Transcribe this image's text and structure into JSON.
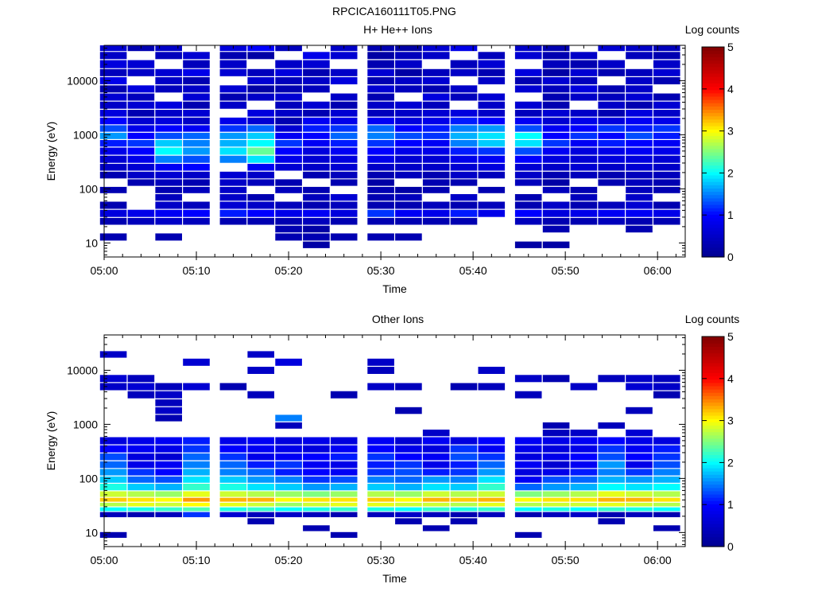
{
  "figure": {
    "title": "RPCICA160111T05.PNG"
  },
  "colorbar": {
    "label": "Log counts",
    "ticks": [
      "0",
      "1",
      "2",
      "3",
      "4",
      "5"
    ],
    "range": [
      0,
      5
    ],
    "colormap": "jet",
    "colors": [
      "#00008f",
      "#0000ff",
      "#00ffff",
      "#ffff00",
      "#ff0000",
      "#800000"
    ]
  },
  "chart_data": [
    {
      "type": "heatmap",
      "title": "H+ He++ Ions",
      "xlabel": "Time",
      "ylabel": "Energy (eV)",
      "yscale": "log",
      "ylim": [
        5.5,
        45000
      ],
      "xlim": [
        "05:00",
        "06:03"
      ],
      "xticks": [
        "05:00",
        "05:10",
        "05:20",
        "05:30",
        "05:40",
        "05:50",
        "06:00"
      ],
      "yticks": [
        "10",
        "100",
        "1000",
        "10000"
      ],
      "time_bins": [
        "05:01",
        "05:04",
        "05:07",
        "05:10",
        "05:14",
        "05:17",
        "05:20",
        "05:23",
        "05:26",
        "05:30",
        "05:33",
        "05:36",
        "05:39",
        "05:42",
        "05:46",
        "05:49",
        "05:52",
        "05:55",
        "05:58",
        "06:01"
      ],
      "energy_bins": [
        40000,
        30000,
        20000,
        14000,
        10000,
        7000,
        5000,
        3500,
        2500,
        1800,
        1300,
        950,
        700,
        500,
        350,
        250,
        180,
        130,
        95,
        70,
        50,
        35,
        25,
        18,
        13,
        9
      ],
      "values": [
        [
          0.6,
          0.3,
          0.5,
          0,
          0.7,
          1.0,
          0.4,
          0,
          0.5,
          0.3,
          0.2,
          0.6,
          0.8,
          0,
          0.5,
          0.3,
          0,
          0.6,
          0.5,
          0.4
        ],
        [
          0.5,
          0,
          0.4,
          0.6,
          0.3,
          0.2,
          0,
          0.8,
          0.6,
          0.2,
          0.4,
          0.5,
          0,
          0.4,
          0.6,
          0.3,
          0.5,
          0,
          0.4,
          0.3
        ],
        [
          0.7,
          0.6,
          0,
          0.4,
          0.5,
          0,
          0.5,
          0.6,
          0,
          0.3,
          0.5,
          0,
          0.4,
          0.6,
          0,
          0.4,
          0.3,
          0.5,
          0,
          0.5
        ],
        [
          0.4,
          0.5,
          0.6,
          0.8,
          0.6,
          0.4,
          0.7,
          0.3,
          0.5,
          0.6,
          0.2,
          0.4,
          0.5,
          0.3,
          0.7,
          0.2,
          0.6,
          0.3,
          0.4,
          0.6
        ],
        [
          0.8,
          0,
          0.5,
          0.3,
          0,
          0.6,
          0.4,
          0.5,
          0.7,
          0.3,
          0.5,
          0.6,
          0,
          0.5,
          0.3,
          0.6,
          0.4,
          0,
          0.5,
          0.3
        ],
        [
          0.3,
          0.7,
          0.4,
          0.5,
          0.6,
          0.2,
          0.3,
          0.4,
          0,
          0.6,
          0.4,
          0.3,
          0.5,
          0,
          0.6,
          0.4,
          0.7,
          0.3,
          0.5,
          0
        ],
        [
          0.6,
          0.4,
          0,
          0.6,
          0.3,
          0.5,
          0.6,
          0,
          0.5,
          0.3,
          0,
          0.7,
          0.4,
          0.6,
          0,
          0.3,
          0.5,
          0.4,
          0.6,
          0.3
        ],
        [
          0.5,
          0.6,
          0.7,
          0.3,
          0.5,
          0,
          0.4,
          0.6,
          0.3,
          0.5,
          0.6,
          0.4,
          0,
          0.5,
          0.6,
          0.3,
          0,
          0.5,
          0.3,
          0.6
        ],
        [
          0.7,
          0.3,
          0.5,
          0.6,
          0,
          0.7,
          0.5,
          0.3,
          0.6,
          0.4,
          0.5,
          0.6,
          0.7,
          0.5,
          0.4,
          0.6,
          0.5,
          0.3,
          0.7,
          0.5
        ],
        [
          1.0,
          0.6,
          0.7,
          0.5,
          0.8,
          0.6,
          0.3,
          0.9,
          0.8,
          0.9,
          0.7,
          0.8,
          1.1,
          1.0,
          0.9,
          0.6,
          0.8,
          0.7,
          0.9,
          0.8
        ],
        [
          1.3,
          0.8,
          1.0,
          0.9,
          1.2,
          1.4,
          0.6,
          1.1,
          1.2,
          1.4,
          1.0,
          1.1,
          1.5,
          1.6,
          1.3,
          0.9,
          1.0,
          1.2,
          1.1,
          1.2
        ],
        [
          1.6,
          1.0,
          1.3,
          1.4,
          1.6,
          1.8,
          0.9,
          1.0,
          1.4,
          1.5,
          1.3,
          1.2,
          1.7,
          1.9,
          2.0,
          1.0,
          1.2,
          1.0,
          1.3,
          1.1
        ],
        [
          1.1,
          1.2,
          1.8,
          1.5,
          1.7,
          2.0,
          1.2,
          0.9,
          1.1,
          1.2,
          1.0,
          0.9,
          1.5,
          1.8,
          1.9,
          1.2,
          0.9,
          1.1,
          1.0,
          0.9
        ],
        [
          0.8,
          1.0,
          2.0,
          1.6,
          1.9,
          2.4,
          1.0,
          0.7,
          0.9,
          1.0,
          0.8,
          0.8,
          1.1,
          1.2,
          1.3,
          0.9,
          0.7,
          0.8,
          0.9,
          0.8
        ],
        [
          0.6,
          0.8,
          1.5,
          1.3,
          1.5,
          1.9,
          0.8,
          0.6,
          0.7,
          0.8,
          0.6,
          0.6,
          0.8,
          0.9,
          1.0,
          0.7,
          0.6,
          0.7,
          0.7,
          0.6
        ],
        [
          0.5,
          0.6,
          0.9,
          1.0,
          0,
          0.9,
          0.6,
          0.5,
          0.6,
          0.5,
          0.5,
          0.5,
          0.6,
          0.7,
          0.6,
          0.5,
          0.6,
          0.5,
          0.6,
          0.5
        ],
        [
          0.3,
          0.5,
          0.6,
          0.5,
          0.6,
          0.5,
          0,
          0.3,
          0.4,
          0.3,
          0.4,
          0.3,
          0.5,
          0.4,
          0.5,
          0.3,
          0.4,
          0.3,
          0.4,
          0.4
        ],
        [
          0,
          0.3,
          0.4,
          0.3,
          0.5,
          0.4,
          0.3,
          0,
          0.3,
          0.2,
          0,
          0.3,
          0.3,
          0,
          0.4,
          0.2,
          0,
          0.3,
          0.4,
          0.3
        ],
        [
          0.3,
          0,
          0.3,
          0.4,
          0.5,
          0,
          0.4,
          0.3,
          0,
          0.3,
          0.2,
          0.3,
          0,
          0.3,
          0,
          0.4,
          0.3,
          0,
          0.4,
          0.3
        ],
        [
          0,
          0,
          0.4,
          0,
          0.5,
          0.3,
          0,
          0.4,
          0.6,
          0.3,
          0.4,
          0,
          0.5,
          0,
          0.3,
          0,
          0.4,
          0,
          0.5,
          0
        ],
        [
          0.3,
          0,
          0.5,
          0.4,
          0.6,
          0.5,
          0.4,
          0.3,
          0.4,
          0.3,
          0.3,
          0.4,
          0.3,
          0.4,
          0.3,
          0.5,
          0.3,
          0.4,
          0.6,
          0.3
        ],
        [
          0.7,
          0.8,
          0.9,
          1.0,
          1.1,
          1.0,
          0.8,
          0.9,
          0.7,
          1.2,
          0.9,
          0.8,
          1.1,
          0.8,
          1.0,
          0.7,
          0.8,
          0.9,
          0.9,
          0.8
        ],
        [
          0.3,
          0.4,
          0.5,
          0.4,
          0.3,
          0.3,
          0.3,
          0.4,
          0.3,
          0.3,
          0.3,
          0.3,
          0.3,
          0,
          0.4,
          0.3,
          0.3,
          0.4,
          0.3,
          0.3
        ],
        [
          0,
          0,
          0,
          0,
          0,
          0,
          0.3,
          0.2,
          0,
          0,
          0,
          0,
          0,
          0,
          0,
          0.3,
          0,
          0,
          0.3,
          0
        ],
        [
          0.3,
          0,
          0.3,
          0,
          0,
          0,
          0.3,
          0.3,
          0.3,
          0.3,
          0.3,
          0,
          0,
          0,
          0,
          0,
          0,
          0,
          0,
          0
        ],
        [
          0,
          0,
          0,
          0,
          0,
          0,
          0,
          0.2,
          0,
          0,
          0,
          0,
          0,
          0,
          0.2,
          0.2,
          0,
          0,
          0,
          0
        ]
      ]
    },
    {
      "type": "heatmap",
      "title": "Other Ions",
      "xlabel": "Time",
      "ylabel": "Energy (eV)",
      "yscale": "log",
      "ylim": [
        5.5,
        45000
      ],
      "xlim": [
        "05:00",
        "06:03"
      ],
      "xticks": [
        "05:00",
        "05:10",
        "05:20",
        "05:30",
        "05:40",
        "05:50",
        "06:00"
      ],
      "yticks": [
        "10",
        "100",
        "1000",
        "10000"
      ],
      "time_bins": [
        "05:01",
        "05:04",
        "05:07",
        "05:10",
        "05:14",
        "05:17",
        "05:20",
        "05:23",
        "05:26",
        "05:30",
        "05:33",
        "05:36",
        "05:39",
        "05:42",
        "05:46",
        "05:49",
        "05:52",
        "05:55",
        "05:58",
        "06:01"
      ],
      "energy_bins": [
        20000,
        14000,
        10000,
        7000,
        5000,
        3500,
        2500,
        1800,
        1300,
        950,
        700,
        500,
        350,
        250,
        180,
        130,
        95,
        70,
        50,
        40,
        33,
        27,
        22,
        16,
        12,
        9
      ],
      "values": [
        [
          0.5,
          0,
          0,
          0,
          0,
          0.5,
          0,
          0,
          0,
          0,
          0,
          0,
          0,
          0,
          0,
          0,
          0,
          0,
          0,
          0
        ],
        [
          0,
          0,
          0,
          0.6,
          0,
          0,
          0.7,
          0,
          0,
          0.5,
          0,
          0,
          0,
          0,
          0,
          0,
          0,
          0,
          0,
          0
        ],
        [
          0,
          0,
          0,
          0,
          0,
          0.5,
          0,
          0,
          0,
          0.4,
          0,
          0,
          0,
          0.5,
          0,
          0,
          0,
          0,
          0,
          0
        ],
        [
          0.6,
          0.4,
          0,
          0,
          0,
          0,
          0,
          0,
          0,
          0,
          0,
          0,
          0,
          0,
          0.5,
          0.3,
          0,
          0.4,
          0.5,
          0.4
        ],
        [
          0.5,
          0.6,
          0.4,
          0.6,
          0.3,
          0,
          0,
          0,
          0,
          0.5,
          0.4,
          0,
          0.3,
          0.4,
          0,
          0,
          0.5,
          0,
          0.6,
          0.5
        ],
        [
          0,
          0.4,
          0.5,
          0,
          0,
          0.4,
          0,
          0,
          0.3,
          0,
          0,
          0,
          0,
          0,
          0.4,
          0,
          0,
          0,
          0,
          0.3
        ],
        [
          0,
          0,
          0.4,
          0,
          0,
          0,
          0,
          0,
          0,
          0,
          0,
          0,
          0,
          0,
          0,
          0,
          0,
          0,
          0,
          0
        ],
        [
          0,
          0,
          0.5,
          0,
          0,
          0,
          0,
          0,
          0,
          0,
          0.3,
          0,
          0,
          0,
          0,
          0,
          0,
          0,
          0.4,
          0
        ],
        [
          0,
          0,
          0.3,
          0,
          0,
          0,
          1.5,
          0,
          0,
          0,
          0,
          0,
          0,
          0,
          0,
          0,
          0,
          0,
          0,
          0
        ],
        [
          0,
          0,
          0,
          0,
          0,
          0,
          0.4,
          0,
          0,
          0,
          0,
          0,
          0,
          0,
          0,
          0.3,
          0,
          0.4,
          0,
          0
        ],
        [
          0,
          0,
          0,
          0,
          0,
          0,
          0,
          0,
          0,
          0,
          0,
          0.5,
          0,
          0,
          0,
          0.4,
          0.5,
          0,
          0.6,
          0
        ],
        [
          0.7,
          0.8,
          0.9,
          1.1,
          0.8,
          0.9,
          0.7,
          0.8,
          0.7,
          0.9,
          0.6,
          0.9,
          0.7,
          1.0,
          0.9,
          0.8,
          0.9,
          1.0,
          0.8,
          0.7
        ],
        [
          1.0,
          0.9,
          0.8,
          1.2,
          1.0,
          0.9,
          0.8,
          0.7,
          0.9,
          1.0,
          0.8,
          0.7,
          1.2,
          0.9,
          0.8,
          0.7,
          0.8,
          1.2,
          0.9,
          1.1
        ],
        [
          1.3,
          0.7,
          0.6,
          1.4,
          1.2,
          0.8,
          0.9,
          1.0,
          1.1,
          1.2,
          1.0,
          0.9,
          1.3,
          1.2,
          0.7,
          0.8,
          1.0,
          1.3,
          1.0,
          1.2
        ],
        [
          1.4,
          0.8,
          0.9,
          1.5,
          1.4,
          1.1,
          1.2,
          0.9,
          0.8,
          1.1,
          1.2,
          0.8,
          1.1,
          1.4,
          0.9,
          0.6,
          0.9,
          1.6,
          0.8,
          1.3
        ],
        [
          1.6,
          1.2,
          1.0,
          1.7,
          1.5,
          1.4,
          1.1,
          1.0,
          0.9,
          1.2,
          1.3,
          1.1,
          1.2,
          1.6,
          0.7,
          0.8,
          1.1,
          1.5,
          1.2,
          1.5
        ],
        [
          1.8,
          1.4,
          1.3,
          1.9,
          1.8,
          1.6,
          1.5,
          1.2,
          1.3,
          1.5,
          1.4,
          1.6,
          1.5,
          1.9,
          0.9,
          1.3,
          1.4,
          1.7,
          1.6,
          1.7
        ],
        [
          2.1,
          1.8,
          1.7,
          2.2,
          2.1,
          1.9,
          1.8,
          1.6,
          1.7,
          1.8,
          1.7,
          1.9,
          1.8,
          2.2,
          1.4,
          1.6,
          1.7,
          2.0,
          1.9,
          2.0
        ],
        [
          2.8,
          2.7,
          2.6,
          2.9,
          2.8,
          2.7,
          2.6,
          2.5,
          2.6,
          2.7,
          2.6,
          2.8,
          2.7,
          2.8,
          2.5,
          2.6,
          2.7,
          2.9,
          2.8,
          2.7
        ],
        [
          3.2,
          3.1,
          3.0,
          3.4,
          3.3,
          3.3,
          3.0,
          3.1,
          3.1,
          3.2,
          3.0,
          3.3,
          3.2,
          3.3,
          3.0,
          3.1,
          3.1,
          3.3,
          3.3,
          3.1
        ],
        [
          2.7,
          2.9,
          2.8,
          3.0,
          2.9,
          2.8,
          2.6,
          2.8,
          2.9,
          2.9,
          2.8,
          2.8,
          2.7,
          2.9,
          2.7,
          2.8,
          2.8,
          2.9,
          2.8,
          2.7
        ],
        [
          2.0,
          2.1,
          2.2,
          2.3,
          2.1,
          2.2,
          2.0,
          2.1,
          2.2,
          2.1,
          2.0,
          2.2,
          2.1,
          2.2,
          2.0,
          2.1,
          2.0,
          2.2,
          2.1,
          2.0
        ],
        [
          0.4,
          0.3,
          0.4,
          1.2,
          0.6,
          0.4,
          0.5,
          0.4,
          0.3,
          0.4,
          0.5,
          0.4,
          0.3,
          0.4,
          0.3,
          0.4,
          0.5,
          0.3,
          0.4,
          0.3
        ],
        [
          0,
          0,
          0,
          0,
          0,
          0.3,
          0,
          0,
          0,
          0,
          0.3,
          0,
          0.3,
          0,
          0,
          0,
          0,
          0.3,
          0,
          0
        ],
        [
          0,
          0,
          0,
          0,
          0,
          0,
          0,
          0.3,
          0,
          0,
          0,
          0.3,
          0,
          0,
          0,
          0,
          0,
          0,
          0,
          0.3
        ],
        [
          0.3,
          0,
          0,
          0,
          0,
          0,
          0,
          0,
          0.3,
          0,
          0,
          0,
          0,
          0,
          0.3,
          0,
          0,
          0,
          0,
          0
        ]
      ]
    }
  ]
}
